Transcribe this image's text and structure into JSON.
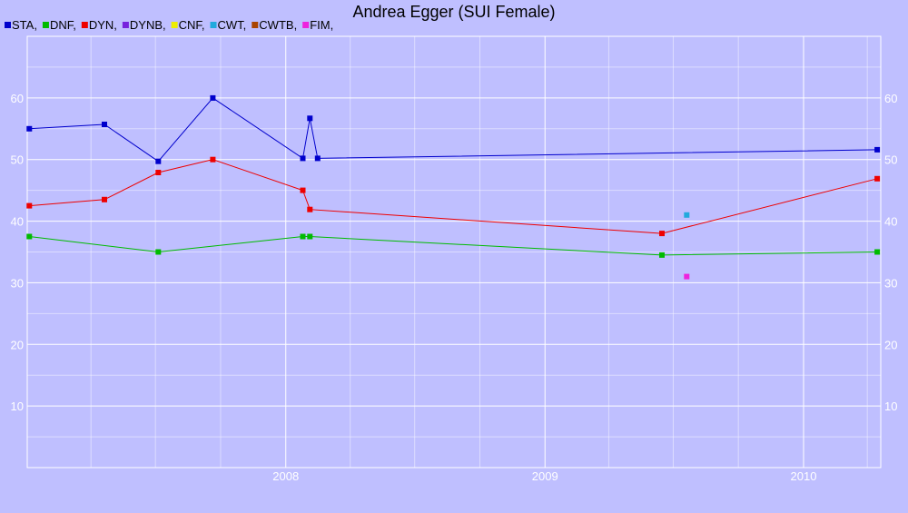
{
  "chart_data": {
    "type": "line",
    "title": "Andrea Egger (SUI Female)",
    "xlabel": "",
    "ylabel": "",
    "xlim": [
      "2007-01-01",
      "2010-04-20"
    ],
    "ylim": [
      0,
      70
    ],
    "x_ticks": [
      "2008",
      "2009",
      "2010"
    ],
    "y_ticks": [
      10,
      20,
      30,
      40,
      50,
      60
    ],
    "grid": true,
    "legend_position": "top-left",
    "colors": {
      "background": "#bfbfff",
      "grid": "#ffffff",
      "text": "#000000",
      "tick_text": "#ffffff"
    },
    "legend": [
      {
        "label": "STA,",
        "color": "#0000cc"
      },
      {
        "label": "DNF,",
        "color": "#00bb00"
      },
      {
        "label": "DYN,",
        "color": "#ee0000"
      },
      {
        "label": "DYNB,",
        "color": "#7722dd"
      },
      {
        "label": "CNF,",
        "color": "#eeee00"
      },
      {
        "label": "CWT,",
        "color": "#22aadd"
      },
      {
        "label": "CWTB,",
        "color": "#aa4400"
      },
      {
        "label": "FIM,",
        "color": "#ee22dd"
      }
    ],
    "series": [
      {
        "name": "STA",
        "color": "#0000cc",
        "points": [
          [
            "2007-01-04",
            55.0
          ],
          [
            "2007-04-20",
            55.7
          ],
          [
            "2007-07-05",
            49.7
          ],
          [
            "2007-09-20",
            60.0
          ],
          [
            "2008-01-25",
            50.2
          ],
          [
            "2008-02-04",
            56.7
          ],
          [
            "2008-02-15",
            50.2
          ],
          [
            "2010-04-15",
            51.6
          ]
        ]
      },
      {
        "name": "DNF",
        "color": "#00bb00",
        "points": [
          [
            "2007-01-04",
            37.5
          ],
          [
            "2007-07-05",
            35.0
          ],
          [
            "2008-01-25",
            37.5
          ],
          [
            "2008-02-04",
            37.5
          ],
          [
            "2009-06-15",
            34.5
          ],
          [
            "2010-04-15",
            35.0
          ]
        ]
      },
      {
        "name": "DYN",
        "color": "#ee0000",
        "points": [
          [
            "2007-01-04",
            42.5
          ],
          [
            "2007-04-20",
            43.5
          ],
          [
            "2007-07-05",
            47.9
          ],
          [
            "2007-09-20",
            50.0
          ],
          [
            "2008-01-25",
            45.0
          ],
          [
            "2008-02-04",
            41.9
          ],
          [
            "2009-06-15",
            38.0
          ],
          [
            "2010-04-15",
            46.9
          ]
        ]
      },
      {
        "name": "CWT",
        "color": "#22aadd",
        "points": [
          [
            "2009-07-20",
            41.0
          ]
        ]
      },
      {
        "name": "FIM",
        "color": "#ee22dd",
        "points": [
          [
            "2009-07-20",
            31.0
          ]
        ]
      }
    ]
  }
}
